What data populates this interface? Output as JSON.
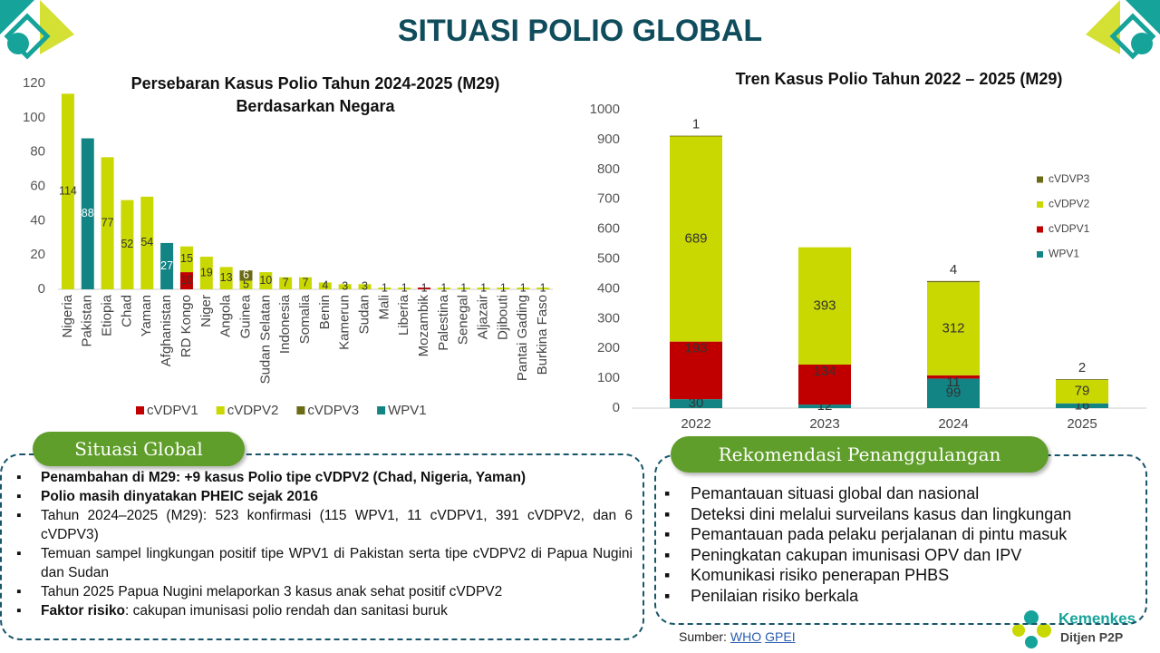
{
  "title": "SITUASI POLIO GLOBAL",
  "chart_data": [
    {
      "type": "bar",
      "stacked": true,
      "title": "Persebaran Kasus Polio Tahun 2024-2025 (M29)",
      "subtitle": "Berdasarkan Negara",
      "categories": [
        "Nigeria",
        "Pakistan",
        "Etiopia",
        "Chad",
        "Yaman",
        "Afghanistan",
        "RD Kongo",
        "Niger",
        "Angola",
        "Guinea",
        "Sudan Selatan",
        "Indonesia",
        "Somalia",
        "Benin",
        "Kamerun",
        "Sudan",
        "Mali",
        "Liberia",
        "Mozambik",
        "Palestina",
        "Senegal",
        "Aljazair",
        "Djibouti",
        "Pantai Gading",
        "Burkina Faso"
      ],
      "series": [
        {
          "name": "cVDPV1",
          "color": "#c00000",
          "label_color": "#333333",
          "values": [
            null,
            null,
            null,
            null,
            null,
            null,
            10,
            null,
            null,
            null,
            null,
            null,
            null,
            null,
            null,
            null,
            null,
            null,
            1,
            null,
            null,
            null,
            null,
            null,
            null
          ]
        },
        {
          "name": "cVDPV2",
          "color": "#c9d800",
          "label_color": "#333333",
          "values": [
            114,
            null,
            77,
            52,
            54,
            null,
            15,
            19,
            13,
            5,
            10,
            7,
            7,
            4,
            3,
            3,
            1,
            1,
            null,
            1,
            1,
            1,
            1,
            1,
            1
          ]
        },
        {
          "name": "cVDPV3",
          "color": "#6b6b15",
          "label_color": "#ffffff",
          "values": [
            null,
            null,
            null,
            null,
            null,
            null,
            null,
            null,
            null,
            6,
            null,
            null,
            null,
            null,
            null,
            null,
            null,
            null,
            null,
            null,
            null,
            null,
            null,
            null,
            null
          ]
        },
        {
          "name": "WPV1",
          "color": "#138484",
          "label_color": "#ffffff",
          "values": [
            null,
            88,
            null,
            null,
            null,
            27,
            null,
            null,
            null,
            null,
            null,
            null,
            null,
            null,
            null,
            null,
            null,
            null,
            null,
            null,
            null,
            null,
            null,
            null,
            null
          ]
        }
      ],
      "ylim": [
        0,
        120
      ],
      "yticks": [
        0,
        20,
        40,
        60,
        80,
        100,
        120
      ],
      "grid": false,
      "legend": "bottom"
    },
    {
      "type": "bar",
      "stacked": true,
      "title": "Tren Kasus Polio Tahun 2022 – 2025 (M29)",
      "categories": [
        "2022",
        "2023",
        "2024",
        "2025"
      ],
      "series": [
        {
          "name": "WPV1",
          "color": "#138484",
          "label_color": "#333333",
          "label_position": "center",
          "values": [
            30,
            12,
            99,
            16
          ]
        },
        {
          "name": "cVDPV1",
          "color": "#c00000",
          "label_color": "#333333",
          "label_position": "inside_end",
          "values": [
            193,
            134,
            11,
            null
          ]
        },
        {
          "name": "cVDPV2",
          "color": "#c9d800",
          "label_color": "#333333",
          "label_position": "center",
          "values": [
            689,
            393,
            312,
            79
          ]
        },
        {
          "name": "cVDVP3",
          "color": "#6b6b15",
          "label_color": "#333333",
          "label_position": "outside_end",
          "values": [
            1,
            null,
            4,
            2
          ]
        }
      ],
      "ylim": [
        0,
        1000
      ],
      "yticks": [
        0,
        100,
        200,
        300,
        400,
        500,
        600,
        700,
        800,
        900,
        1000
      ],
      "grid": false,
      "legend": "right"
    }
  ],
  "situasi_global": {
    "heading": "Situasi Global",
    "items": [
      {
        "text": "Penambahan di M29: +9 kasus Polio tipe cVDPV2 (Chad, Nigeria, Yaman)",
        "bold": true
      },
      {
        "text": "Polio masih dinyatakan PHEIC sejak 2016",
        "bold": true
      },
      {
        "text": "Tahun 2024–2025 (M29): 523 konfirmasi (115 WPV1, 11 cVDPV1, 391 cVDPV2, dan 6 cVDPV3)"
      },
      {
        "text": "Temuan sampel lingkungan positif tipe WPV1 di Pakistan serta tipe cVDPV2 di Papua Nugini dan Sudan"
      },
      {
        "text": "Tahun 2025 Papua Nugini melaporkan 3 kasus anak sehat positif cVDPV2"
      },
      {
        "label": "Faktor risiko",
        "text": ": cakupan imunisasi polio rendah dan sanitasi buruk"
      }
    ]
  },
  "rekomendasi": {
    "heading": "Rekomendasi Penanggulangan",
    "items": [
      "Pemantauan situasi global dan nasional",
      "Deteksi dini melalui surveilans kasus dan lingkungan",
      "Pemantauan pada pelaku perjalanan di pintu masuk",
      "Peningkatan cakupan imunisasi OPV dan IPV",
      "Komunikasi risiko penerapan PHBS",
      "Penilaian risiko berkala"
    ]
  },
  "source": {
    "label": "Sumber:",
    "links": [
      "WHO",
      "GPEI"
    ]
  },
  "logo": {
    "name": "Kemenkes",
    "unit": "Ditjen P2P"
  }
}
